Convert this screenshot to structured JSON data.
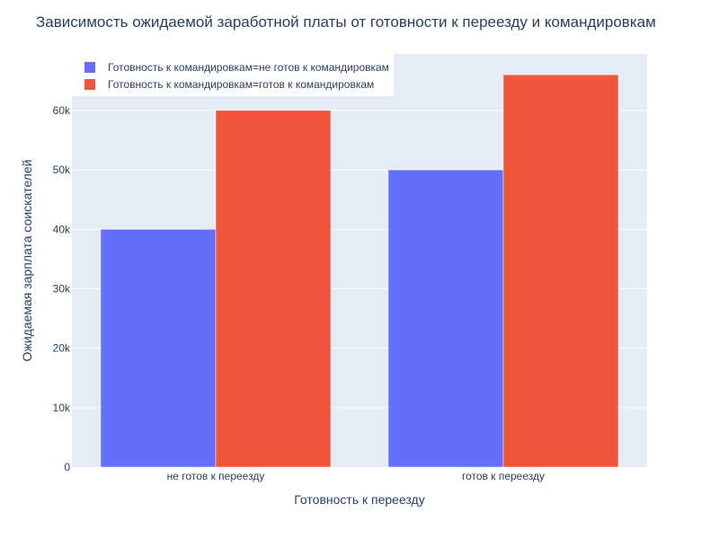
{
  "chart_data": {
    "type": "bar",
    "barmode": "group",
    "title": "Зависимость ожидаемой заработной платы от готовности к переезду и командировкам",
    "xlabel": "Готовность к переезду",
    "ylabel": "Ожидаемая зарплата соискателей",
    "categories": [
      "не готов к переезду",
      "готов к переезду"
    ],
    "series": [
      {
        "name": "Готовность к командировкам=не готов к командировкам",
        "values": [
          40000,
          50000
        ],
        "color": "#636efa"
      },
      {
        "name": "Готовность к командировкам=готов к командировкам",
        "values": [
          60000,
          66000
        ],
        "color": "#ef553b"
      }
    ],
    "ylim": [
      0,
      69500
    ],
    "yticks": [
      0,
      10000,
      20000,
      30000,
      40000,
      50000,
      60000
    ],
    "ytick_labels": [
      "0",
      "10k",
      "20k",
      "30k",
      "40k",
      "50k",
      "60k"
    ],
    "grid": true,
    "legend_position": "top-left",
    "plot_background": "#e5ecf6",
    "text_color": "#2a3f5f"
  }
}
